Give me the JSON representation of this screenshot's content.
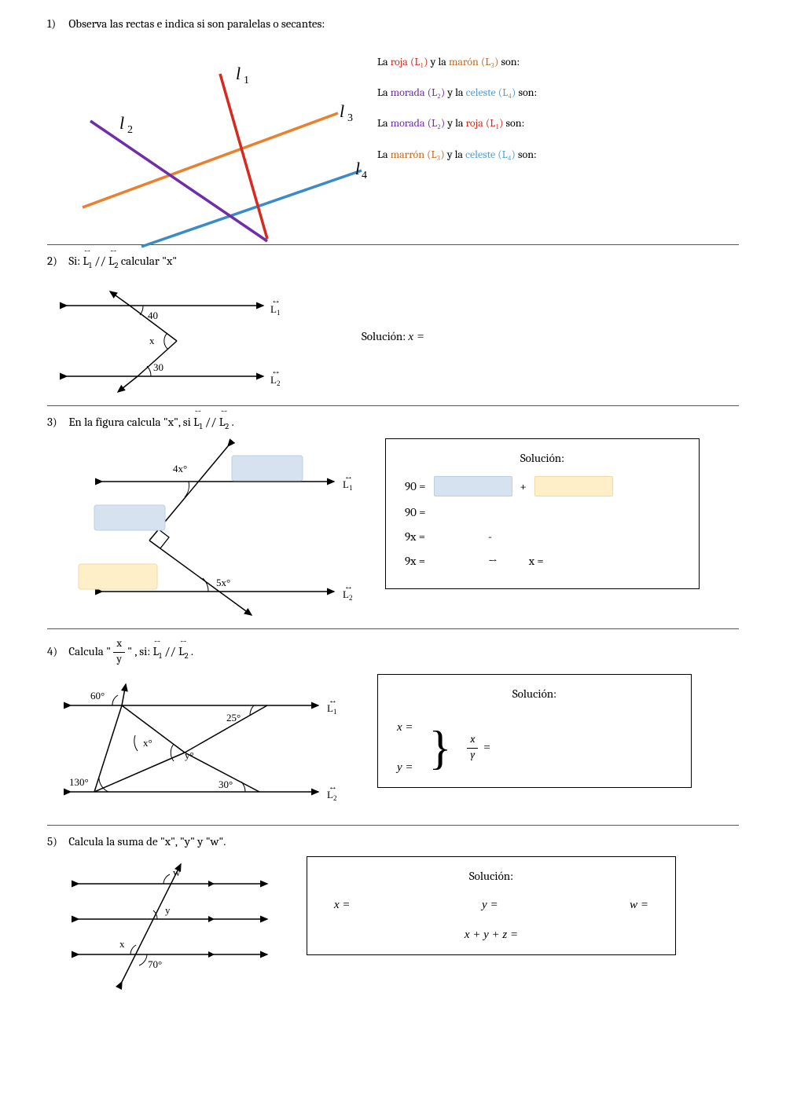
{
  "colors": {
    "red": "#d52b1e",
    "purple": "#6f2da8",
    "brown": "#c56b1e",
    "orange": "#eb7f2d",
    "celeste": "#4da0d8",
    "blue": "#3b8bc9",
    "text": "#000000",
    "blank_blue": "#d6e2ef",
    "blank_yellow": "#ffefc9",
    "border": "#000000"
  },
  "p1": {
    "num": "1)",
    "prompt": "Observa las rectas e indica si son paralelas o secantes:",
    "lines": {
      "L1": {
        "color": "#d52b1e",
        "label": "l₁"
      },
      "L2": {
        "color": "#6f2da8",
        "label": "l₂"
      },
      "L3": {
        "color": "#eb7f2d",
        "label": "l₃"
      },
      "L4": {
        "color": "#3b8bc9",
        "label": "l₄"
      }
    },
    "statements": [
      {
        "parts": [
          "La ",
          {
            "t": "roja (L₁)",
            "c": "#d52b1e"
          },
          " y la ",
          {
            "t": "marón (L₃)",
            "c": "#c56b1e"
          },
          " son:"
        ]
      },
      {
        "parts": [
          "La ",
          {
            "t": "morada (L₂)",
            "c": "#6f2da8"
          },
          " y la ",
          {
            "t": "celeste (L₄)",
            "c": "#4da0d8"
          },
          " son:"
        ]
      },
      {
        "parts": [
          "La ",
          {
            "t": "morada (L₂)",
            "c": "#6f2da8"
          },
          " y la ",
          {
            "t": "roja (L₁)",
            "c": "#d52b1e"
          },
          " son:"
        ]
      },
      {
        "parts": [
          "La ",
          {
            "t": "marrón (L₃)",
            "c": "#c56b1e"
          },
          " y la ",
          {
            "t": "celeste (L₄)",
            "c": "#4da0d8"
          },
          " son:"
        ]
      }
    ]
  },
  "p2": {
    "num": "2)",
    "prompt_prefix": "Si: ",
    "prompt_mid": " // ",
    "prompt_suffix": " calcular \"x\"",
    "L1": "L₁",
    "L2": "L₂",
    "angle_top": "40",
    "angle_mid": "x",
    "angle_bot": "30",
    "solution_label": "Solución: ",
    "solution_var": "x ="
  },
  "p3": {
    "num": "3)",
    "prompt_prefix": "En la figura calcula \"x\", si ",
    "prompt_mid": " // ",
    "prompt_end": " .",
    "L1": "L₁",
    "L2": "L₂",
    "angle_top": "4x°",
    "angle_bot": "5x°",
    "sol_title": "Solución:",
    "eq1_lhs": "90 =",
    "eq1_plus": "+",
    "eq2": "90 =",
    "eq3": "9x =",
    "eq3_minus": "-",
    "eq4": "9x =",
    "eq4_arrow": "→",
    "eq4_x": "x ="
  },
  "p4": {
    "num": "4)",
    "prompt_prefix": "Calcula \" ",
    "prompt_frac_n": "x",
    "prompt_frac_d": "y",
    "prompt_mid": " \" , si: ",
    "prompt_par": " // ",
    "prompt_end": " .",
    "L1": "L₁",
    "L2": "L₂",
    "angles": {
      "a60": "60°",
      "a25": "25°",
      "ax": "x°",
      "ay": "y°",
      "a130": "130°",
      "a30": "30°"
    },
    "sol_title": "Solución:",
    "xeq": "x =",
    "yeq": "y =",
    "frac_n": "x",
    "frac_d": "y",
    "frac_eq": "="
  },
  "p5": {
    "num": "5)",
    "prompt": "Calcula la suma de \"x\", \"y\" y \"w\".",
    "labels": {
      "w": "w",
      "y": "y",
      "x": "x",
      "a70": "70°"
    },
    "sol_title": "Solución:",
    "xeq": "x =",
    "yeq": "y =",
    "weq": "w =",
    "sum": "x + y + z ="
  }
}
